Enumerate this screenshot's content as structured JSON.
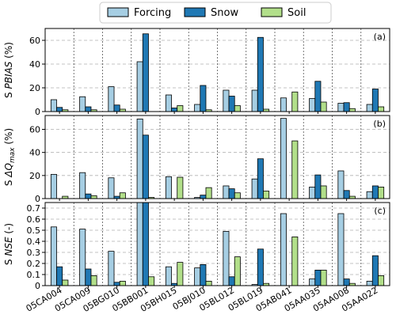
{
  "chart_data": {
    "type": "bar",
    "categories": [
      "05CA004",
      "05CA009",
      "05BG010",
      "05BB001",
      "05BH015",
      "05BJ010",
      "05BL012",
      "05BL019",
      "05AB041",
      "05AA035",
      "05AA008",
      "05AA022"
    ],
    "legend": {
      "placement": "top-center",
      "entries": [
        {
          "name": "Forcing",
          "color": "#a6cee3"
        },
        {
          "name": "Snow",
          "color": "#1f78b4"
        },
        {
          "name": "Soil",
          "color": "#b2df8a"
        }
      ]
    },
    "grid": true,
    "panels": [
      {
        "tag": "(a)",
        "ylabel_prefix": "S",
        "ylabel_var": "PBIAS",
        "ylabel_unit": "(%)",
        "ylim": [
          0,
          70
        ],
        "yticks": [
          0,
          20,
          40,
          60
        ],
        "series": [
          {
            "name": "Forcing",
            "values": [
              10,
              12.5,
              21,
              42,
              14,
              6,
              18,
              18,
              11.5,
              11,
              7,
              6
            ]
          },
          {
            "name": "Snow",
            "values": [
              3.5,
              4,
              5.5,
              65.5,
              3,
              22,
              13,
              62.5,
              0,
              25.5,
              7.5,
              19
            ]
          },
          {
            "name": "Soil",
            "values": [
              1.5,
              1.5,
              2,
              0,
              5,
              1.5,
              5,
              2,
              16.5,
              8,
              2.5,
              4
            ]
          }
        ]
      },
      {
        "tag": "(b)",
        "ylabel_prefix": "S",
        "ylabel_var": "ΔQ",
        "ylabel_sub": "max",
        "ylabel_unit": "(%)",
        "ylim": [
          0,
          72
        ],
        "yticks": [
          0,
          20,
          40,
          60
        ],
        "series": [
          {
            "name": "Forcing",
            "values": [
              21,
              22.5,
              18,
              69,
              19,
              1,
              11,
              17,
              69.5,
              10,
              24,
              6
            ]
          },
          {
            "name": "Snow",
            "values": [
              0,
              4,
              2,
              55,
              0,
              3,
              8.5,
              34.5,
              0,
              20.5,
              7,
              11
            ]
          },
          {
            "name": "Soil",
            "values": [
              2,
              2.5,
              5,
              1,
              18.5,
              9.5,
              5,
              6.5,
              50,
              11,
              2,
              10
            ]
          }
        ]
      },
      {
        "tag": "(c)",
        "ylabel_prefix": "S",
        "ylabel_var": "NSE",
        "ylabel_unit": "(-)",
        "ylim": [
          0,
          0.75
        ],
        "yticks": [
          0.0,
          0.1,
          0.2,
          0.3,
          0.4,
          0.5,
          0.6,
          0.7
        ],
        "series": [
          {
            "name": "Forcing",
            "values": [
              0.53,
              0.51,
              0.31,
              0.75,
              0.17,
              0.16,
              0.49,
              0.01,
              0.65,
              0.06,
              0.65,
              0.04
            ]
          },
          {
            "name": "Snow",
            "values": [
              0.17,
              0.15,
              0.03,
              0.75,
              0.02,
              0.19,
              0.08,
              0.33,
              0.0,
              0.14,
              0.06,
              0.27
            ]
          },
          {
            "name": "Soil",
            "values": [
              0.05,
              0.09,
              0.04,
              0.08,
              0.21,
              0.04,
              0.26,
              0.02,
              0.44,
              0.14,
              0.02,
              0.09
            ]
          }
        ]
      }
    ]
  }
}
